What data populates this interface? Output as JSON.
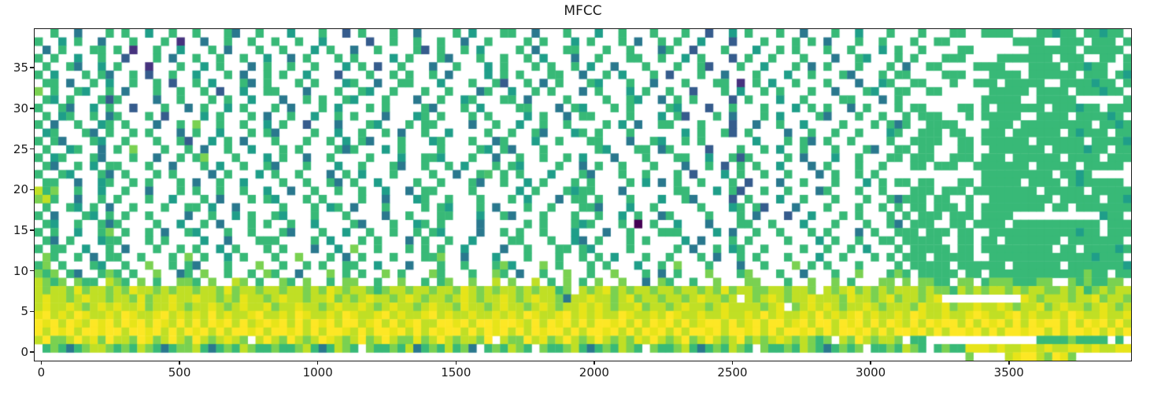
{
  "chart_data": {
    "type": "heatmap",
    "title": "MFCC",
    "xlabel": "",
    "ylabel": "",
    "legend": "none",
    "colormap": "viridis",
    "nan_color": "#ffffff",
    "x_ticks": [
      0,
      500,
      1000,
      1500,
      2000,
      2500,
      3000,
      3500
    ],
    "y_ticks": [
      0,
      5,
      10,
      15,
      20,
      25,
      30,
      35
    ],
    "xlim": [
      -24,
      3942
    ],
    "ylim": [
      -1.05,
      39.75
    ],
    "grid": {
      "cols": 139,
      "rows": 40,
      "row_order": "top-to-bottom",
      "palette": {
        "0": "#440154",
        "p": "#46327e",
        "b": "#365c8d",
        "t": "#2a788e",
        "T": "#1f9e89",
        "g": "#38b977",
        "G": "#4ac16d",
        "l": "#7ad151",
        "y": "#c0df25",
        "e": "#e7e419",
        "Y": "#fde725"
      },
      "cells": [
        "..g..t...g.g..T..g..g...gt..g...T...g..b.g...g..t....g.T...gg..t...g...T..g...g...g..b..T.g...g..t...g..T...g...g...gg..gggg...ggTgg.ggTgg.",
        "g..T.g..t...g...g.p..t..g..g..g..g..T.....b..g..g..g..t..g....g.g...T.g...g.t..g.g..T...b...g...g.g.t...g..g...g..gg........gggg..ggg.ggg.g",
        ".t.g...gg.g.p..g..T...g.t...g..g...T.g..t..g....gb.g..g.T....g.t...gg...g..g...tg..b...g...T..g.g...g..g...T.g..g....gg.......gggggg.ggggg.",
        "g.g..T..g..b...g.t..g..g..g..T..t.g...g.g....T.g...gt...g..g..g.T...t..g...gg..g..T.g...b.g..g...g...t..gT...g.g...ggg....ggggggg.ggg..gg.g",
        ".g..gt..T.g...p...g..T.g...t.g..g..g...T.g.b..g...t..g...T.g...g.g..g.T..t...g...g..gb...g..T...g.t.g...g...g.t..gg....gggg...gggg.ggTgg..g",
        "g.T...g.gt..g.b..g..T...g.t..g.g..T...b...g..g.g..g.t....T.g.g...gg..t..g.T...g.b...g..t...g...T..g...gt...g.gg....ggg...gggg.gggggg.ggg.gT",
        ".gg.t..g.T..g..g.b..g.T...gt.g...g.g...Tg..t..gg...T...g..gb..g.t.g...gT...g..t...g...gg.p.g.T..g...g...t..Tg..gg...g..ggg.ggggg..ggggTgg.g",
        "l.g..gT..g.t...g..g..g.b..T..gg...t...g..gT..g...g..g...tg..T..g.g...t.g...T.g..g..b...g.T..g.g...g..t...gT..gg..gg......ggggg.gggg.gggTgg.",
        ".gT.g...gbg....t..g...g.g..T...t..g.g..gT...g...t..g..Tg...gg.t....g....g..gT..t.g.g....b.g...T..g....gg...t.g..........ggggg..ggggg......g",
        "g..gt..T.g..b...g..t.g..T.g...g.t...g.T...g.g....gt...g.T....gg...t.gT...g.g....gT...b..g...g...T.g.g..t.g...g.gg....gg.g.gggggg.gggTgg.ggg",
        ".g.Tg..g.tg...g.b....T.g...g.t..g..T..g.g...t...Tg.g...g.g....T.g..t.gg....g...T.gb...g.t...g.T....gt...g..g..g.ggg...g.ggggg..gggg.ggggTg.",
        "g.t..g..Tg.g...t..g.l..g..g..T.g..b...t...gT...g.gg....t..g..T..g..g....g.T.t..gg...g...b..t..g..T....g...g.gtg..gggg....ggg.ggggggggg.ggTg",
        ".Tg...gt.g..g.g...t.g..T...g.gt....g..T..g..g.t..g..T....g..g..gt...Tg.g...g......T.g..gb.g....t..g..g..g...Tg..ggg.gg..ggg.gggggg.gTggg.gg",
        "g.gt...gT..g...g..gb..T.g.t...g...g..g.T.gt...g...Tg...g..tg...T..g...gg...t..gT..g.g......T...g.gt.g..g....g..gggg..gg.gggggg.gggggg.ggggT",
        ".g..Tg..t.g.l...g..g.t..g..T...g.g....gtg...T.g....g....gT.gt...g......gT...gg.tg....b...g..g.T..g...g...gt..gg.gg...gg..ggggggg.ggggTgg.gg",
        "g.Tg...gt...g..t..g.gl...g...T.g..t..g....g...T..ggT...g..t..g..g..g.T...t...g...gg..T..gbg....g.t...T..g...gg.ggg..ggg.ggg.gggggg.gggg.ggg",
        ".gt..g.T.gg...g..t...g.T..g..gt...g...T..g...gt..g..g.T...g.gT....g..t.g..g...g...t..g.b.g.g..T...t.g...g..g...gg.ggg..ggggggg.ggggg.ggggg.",
        "g..gT...gt.g...g.g....t.g...T.g..g...t.g.T...g....g..t..gG.g.g...T...gt...g..g...g.b...T.g..g..g...t.g..g.g.............ggggggggg.ggTg",
        ".gg..t..Tg..g.g...g.t..g..T....g..g..gt.g..T....g..g...gt..g..T.g...g.g....g.T.t.g..g...g.b...t..g...g...T.g.gg.gg...gg.ggggg.gggg.gTggggg.",
        "ygl..g..T..g..t...g.g..g..g..T..t..g..g..g..T..t.gg....g.....T.g...gTgg...t......gg...T.gb..g..g...tg...g..g...ggg.ggg.gggggggg.ggggg.ggggg",
        "lyg..t..g.g...g..T...g.t...g.gT...g.g....g..t...Tg..g...g...g.T...t.gg.g...g...T..gt....b.g...T..g...g...g..gtggg.gg..g..gggggggg.ggggg.ggT",
        ".g..gT.g.t..g...g..gg.T..t.....g...g.Tg.t...g....g.gT...g.t...g..g...ggt...T..g.....g...Tg.gb...t...g...g..g.g.gg.ggg.g.gggggggg.gg.ggggggg",
        "g.t...gT.g.g..g....t..g..T.g..gT...g...g....t..g...gg...T..gt...g...g..g..T.g..tg....g...g.t...b..T...g.g...g.g.ggg.ggg.gggg...........Tgg.",
        ".gT..g..gtg....g..T..g.t...g.g..g..T....gt...g..Tg.g....t.....g.g...gTg...g.0.g..T...t...gg..g...T...g...g..gt.ggg..gg.gggg.ggggggggggg.ggg",
        "g.g..T..gl.g..g.t..gT...g..g...gt...g..T..g..g..g.gT....t..g.g..g...T...t..g...ggg....T.t..g..g...g.g...t.g..ggg.ggg.gg..gggggggggggTgg.ggg",
        ".gt.g...Tgg...g.g....T..t...ggg....g.T...g.g...t.g..g..T....gg...g..Tt.g...g.g....T.t...g.g....g...T.g..g..gg.ggggg..gg.gg.ggggggg.ggggggg.",
        "g.gg..T..g.t...g..g.g..T.g...g.g...t..T.l..g...g.g.g..T....t..g...gg.gT....g.....g.t..g.Tg..g....g..g..g.T...g.ggggg.gg.ggggggggg.gg.ggggTg",
        ".lg..g.t.gg..g...g.l.g..T.g...g..l...g.t.g...g...ggl..t...T...g...g..g.g.T...g..g...g.t..g.g...g...T..g...g.g.ggg.ggggg..gggggggggggggTggg.",
        "gl.g...gT..g..l..g.gt...g...l..g..g.g..gg..T...t...g..g...glT...l.g...g.g...T..g.l...g...t..g...l.g.g...g....g.ggggg.gggggg.gggggg.gggggggT",
        "lgl.gt..glg.g..l..tg.l..g..g.lg..t...l.g.g..l.g...lg...g..lg.t..g..l..g..l...g.t.g...l...gl...g..t...g..l...glg.ggggg.gg.gggggggggggglgg.gg",
        "ylgl.lgg.ylg.l.g..llg.l..yl.g..lg.l..g.ll..g..l..g.gl..l..y.l..y.g.l.g.l..l..t.lg..g..l...ll...g..l..l.g...ll.l.llgg.ll.glllgggll..lglggll.",
        "ylyylelyylyleyylylyylyylelyylyylyylyleylyylglyylyylyyleylylyylylyygl.ylyelylyylyylyylylelyyllyylyyl.ylyelylylyyylyllgylylyylylyyllylyglylyy",
        "yeyylyeyylyylelyyeyyeyylyleyylyeyylyyelylyeyylyeylyylyeylyyeylyeyyltyyeyylyelyylyylyeyyly.ylyeylyyeyyyleyylyelyylye..........eylyyylyyelyyl",
        "yeyyeylyeyeyyelyyeylyyeylyeyyelyyeyylyeyyeylyeyylyeyyleyylyeyylyeylyyeyeylyyelyylyeyylyeyyyylye.lyeyeylyyeylyyyleyyelyyeyyeylyyelyeyylyeyly",
        "eYyeyYeyyeyYeyyeYyeyeyYyeyyeYyyeyYeyyeyYeyyeYyeyyeYyeyyeyyeyeyYeyyeYyeyeyyYeyyeyYeyyeyyeyyeyYyeyyeyYyeyeYyeyyeyYeyyeyyeYeyyeYyeyyeyYeyyeyye",
        "YeYyYeyYeYyYeYyYeyYyYyYeYyYyeYeYyYyYeYyYYyeYyYyeYyyYYeYyYYeYYeyYyYeYyYyYYeYyYyYeYyYyeYYyYyeYyYYyeYyYYyYeYyYyYeyYyYeYYyYyYeYyYyYeYYyYyYeYyYy",
        "YyYeYyYYeYYyYYeYyYyYeYyYyYYeYyYYeYyYyYYeyYyYYeYyYyYeYYyYyYeYyYyYeYYyYyYYeYyYyYeYyYyYYeYyYYeYyYyYYeYyYyYYeYyYyYYeYyYyYYeYyYyYYeYYyYyYYeYyYyYe",
        "yYllyYyelYyylYelyYylYylyeyl.yYylYylyYeylyYlyYyllelyYylyylY.yllYyelyYylyYylyleyYylyYlyYylyYlylyeylylgl.ylYylyyl.gg..............gggglgggg.g",
        ".glgtglyylglgylgtgllygtglgylgglgglygtgylg.lgglgytglgyglt.glgylg.lgglygtglgylg.lgglygtglgylg.lgglgylgtglgl.gglgylg.glggeeeyeyyeeyeyyeeyeyyee",
        "......................................................................................................................l....yeYYylYel............."
      ]
    }
  }
}
